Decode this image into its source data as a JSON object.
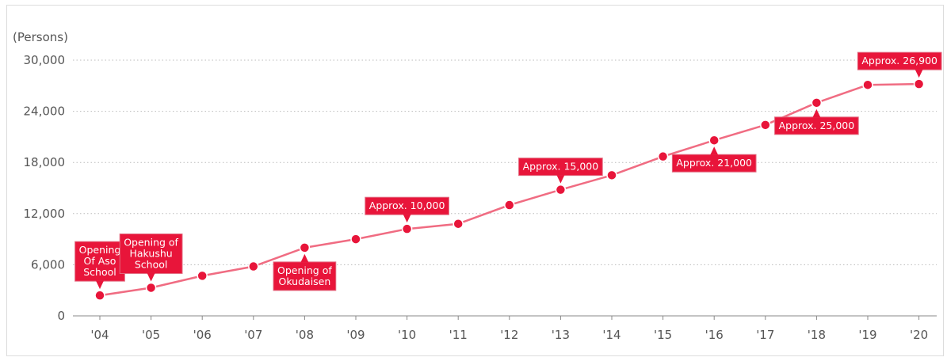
{
  "chart_data": {
    "type": "line",
    "ylabel": "(Persons)",
    "ylim": [
      0,
      30000
    ],
    "yticks": [
      "0",
      "6,000",
      "12,000",
      "18,000",
      "24,000",
      "30,000"
    ],
    "ytick_values": [
      0,
      6000,
      12000,
      18000,
      24000,
      30000
    ],
    "categories": [
      "'04",
      "'05",
      "'06",
      "'07",
      "'08",
      "'09",
      "'10",
      "'11",
      "'12",
      "'13",
      "'14",
      "'15",
      "'16",
      "'17",
      "'18",
      "'19",
      "'20"
    ],
    "values": [
      2400,
      3300,
      4700,
      5800,
      8000,
      9000,
      10200,
      10800,
      13000,
      14800,
      16500,
      18700,
      20600,
      22400,
      25000,
      27100,
      27200
    ],
    "grid": "horizontal-dotted",
    "colors": {
      "line": "#f06c82",
      "marker": "#e8153a",
      "callout_fill": "#e8153a",
      "callout_border": "#e26b80",
      "grid": "#bbbbbb",
      "axis": "#888888"
    },
    "annotations": [
      {
        "index": 0,
        "lines": [
          "Opening",
          "Of Aso",
          "School"
        ],
        "side": "above"
      },
      {
        "index": 1,
        "lines": [
          "Opening of",
          "Hakushu",
          "School"
        ],
        "side": "above"
      },
      {
        "index": 4,
        "lines": [
          "Opening of",
          "Okudaisen"
        ],
        "side": "below"
      },
      {
        "index": 6,
        "lines": [
          "Approx. 10,000"
        ],
        "side": "above"
      },
      {
        "index": 9,
        "lines": [
          "Approx. 15,000"
        ],
        "side": "above"
      },
      {
        "index": 12,
        "lines": [
          "Approx. 21,000"
        ],
        "side": "below"
      },
      {
        "index": 14,
        "lines": [
          "Approx. 25,000"
        ],
        "side": "below"
      },
      {
        "index": 16,
        "lines": [
          "Approx. 26,900"
        ],
        "side": "above"
      }
    ]
  }
}
